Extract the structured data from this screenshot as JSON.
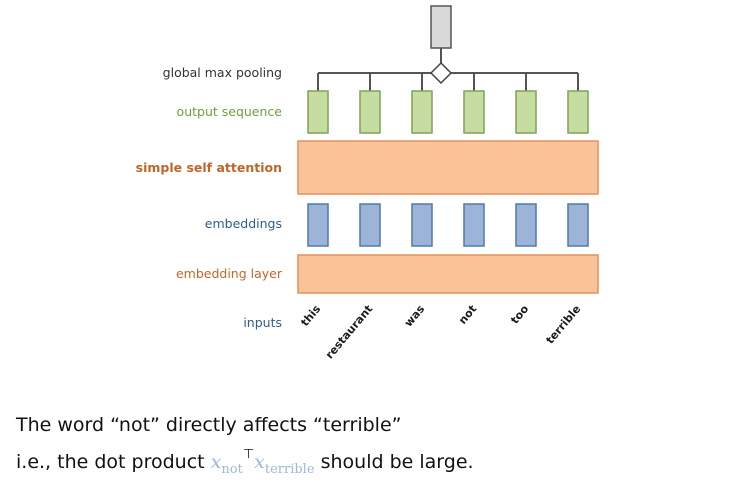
{
  "labels": {
    "pooling": "global max pooling",
    "output": "output sequence",
    "attention": "simple self attention",
    "embeddings": "embeddings",
    "embedding_layer": "embedding layer",
    "inputs": "inputs"
  },
  "tokens": [
    "this",
    "restaurant",
    "was",
    "not",
    "too",
    "terrible"
  ],
  "caption": {
    "line1": "The word “not” directly affects “terrible”",
    "line2_prefix": "i.e., the dot product",
    "x": "x",
    "sub_not": "not",
    "transpose": "⊤",
    "sub_terrible": "terrible",
    "line2_suffix": "should be large."
  },
  "colors": {
    "pooling_label": "#333333",
    "output_label": "#6f9f3a",
    "output_fill": "#c6dca0",
    "output_stroke": "#7ea356",
    "attention_label": "#c0662b",
    "attention_fill": "#fbc498",
    "attention_stroke": "#e0925a",
    "embeddings_label": "#2f5d8c",
    "embeddings_fill": "#9bb4d8",
    "embeddings_stroke": "#4f79aa",
    "embedding_layer_label": "#c0662b",
    "inputs_label": "#2f5d8c",
    "pool_box_fill": "#d9d9d9",
    "pool_box_stroke": "#555555",
    "math_color": "#9db7dd"
  }
}
